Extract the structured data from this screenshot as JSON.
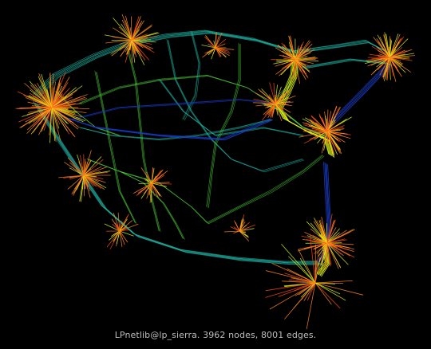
{
  "caption": "LPnetlib@lp_sierra. 3962 nodes, 8001 edges.",
  "colors": {
    "background": "#000000",
    "edge_cool": "#1a3fd0",
    "edge_teal": "#1fb6a6",
    "edge_green": "#4fd23a",
    "edge_yellow": "#d9f21a",
    "edge_orange": "#ff8a1e",
    "edge_red": "#ff4a14",
    "caption_text": "#bdbdbd"
  }
}
